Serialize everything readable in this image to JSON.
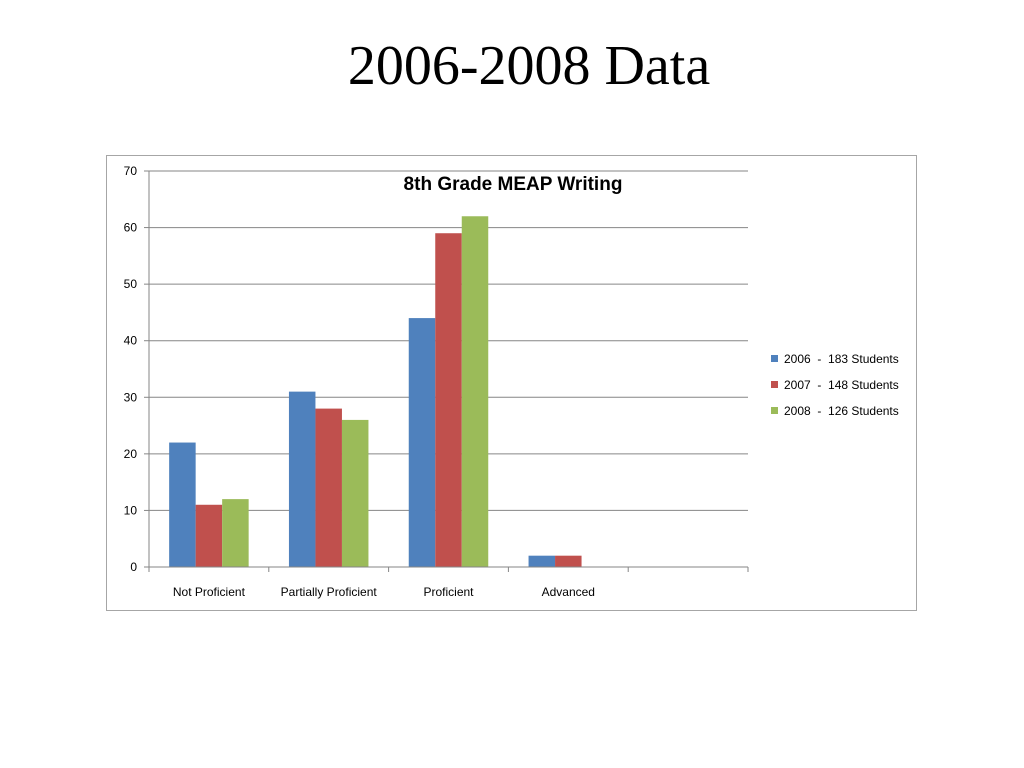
{
  "slide": {
    "title": "2006-2008 Data"
  },
  "chart_data": {
    "type": "bar",
    "title": "8th Grade MEAP Writing",
    "xlabel": "",
    "ylabel": "",
    "categories": [
      "Not Proficient",
      "Partially Proficient",
      "Proficient",
      "Advanced",
      ""
    ],
    "series": [
      {
        "name": "2006  -  183 Students",
        "color": "#4f81bd",
        "values": [
          22,
          31,
          44,
          2,
          null
        ]
      },
      {
        "name": "2007  -  148 Students",
        "color": "#c0504d",
        "values": [
          11,
          28,
          59,
          2,
          null
        ]
      },
      {
        "name": "2008  -  126 Students",
        "color": "#9bbb59",
        "values": [
          12,
          26,
          62,
          null,
          null
        ]
      }
    ],
    "ylim": [
      0,
      70
    ],
    "yticks": [
      0,
      10,
      20,
      30,
      40,
      50,
      60,
      70
    ],
    "grid": true,
    "legend": "right"
  }
}
